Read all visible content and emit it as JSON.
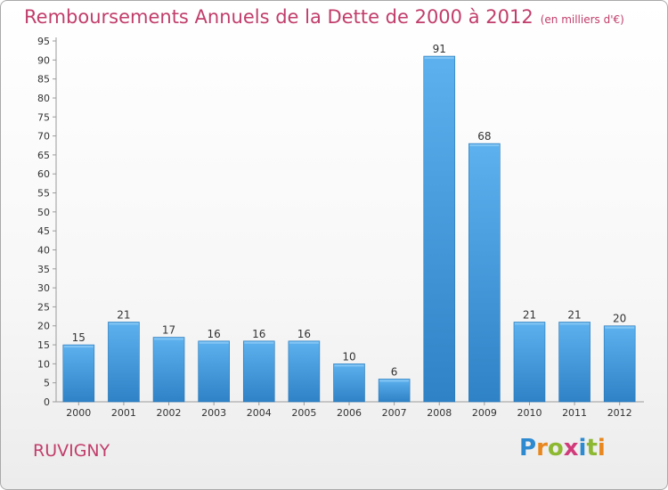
{
  "title": "Remboursements Annuels de la Dette de 2000 à 2012",
  "unit_note": "(en milliers d'€)",
  "commune": "RUVIGNY",
  "logo": {
    "text": "Proxiti",
    "letters": [
      "P",
      "r",
      "o",
      "x",
      "i",
      "t",
      "i"
    ],
    "colors": [
      "#2e8ad0",
      "#e8871e",
      "#8cb832",
      "#d13b7a",
      "#2e8ad0",
      "#8cb832",
      "#e8871e"
    ]
  },
  "colors": {
    "bar": "#3b93d8",
    "bar_light": "#5db1ee",
    "title": "#c13d6b"
  },
  "chart_data": {
    "type": "bar",
    "title": "Remboursements Annuels de la Dette de 2000 à 2012",
    "xlabel": "",
    "ylabel": "",
    "categories": [
      "2000",
      "2001",
      "2002",
      "2003",
      "2004",
      "2005",
      "2006",
      "2007",
      "2008",
      "2009",
      "2010",
      "2011",
      "2012"
    ],
    "values": [
      15,
      21,
      17,
      16,
      16,
      16,
      10,
      6,
      91,
      68,
      21,
      21,
      20
    ],
    "ylim": [
      0,
      95
    ],
    "yticks": [
      0,
      5,
      10,
      15,
      20,
      25,
      30,
      35,
      40,
      45,
      50,
      55,
      60,
      65,
      70,
      75,
      80,
      85,
      90,
      95
    ],
    "grid": false,
    "data_labels": true
  }
}
